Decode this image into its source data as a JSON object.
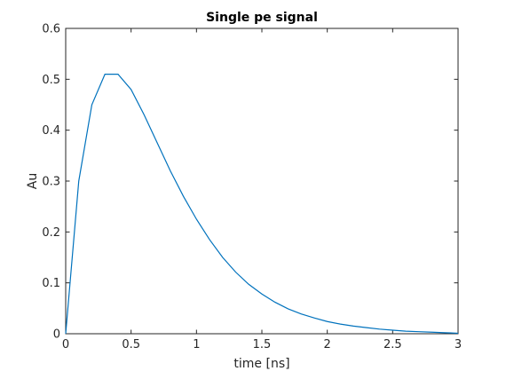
{
  "chart_data": {
    "type": "line",
    "title": "Single pe signal",
    "xlabel": "time [ns]",
    "ylabel": "Au",
    "xlim": [
      0,
      3
    ],
    "ylim": [
      0,
      0.6
    ],
    "xticks": [
      "0",
      "0.5",
      "1",
      "1.5",
      "2",
      "2.5",
      "3"
    ],
    "yticks": [
      "0",
      "0.1",
      "0.2",
      "0.3",
      "0.4",
      "0.5",
      "0.6"
    ],
    "grid": false,
    "line_color": "#0072BD",
    "x": [
      0,
      0.1,
      0.2,
      0.3,
      0.4,
      0.5,
      0.6,
      0.7,
      0.8,
      0.9,
      1.0,
      1.1,
      1.2,
      1.3,
      1.4,
      1.5,
      1.6,
      1.7,
      1.8,
      1.9,
      2.0,
      2.1,
      2.2,
      2.3,
      2.4,
      2.5,
      2.6,
      2.7,
      2.8,
      2.9,
      3.0
    ],
    "y": [
      0,
      0.3,
      0.45,
      0.51,
      0.51,
      0.48,
      0.43,
      0.375,
      0.32,
      0.27,
      0.225,
      0.185,
      0.15,
      0.121,
      0.097,
      0.078,
      0.062,
      0.049,
      0.039,
      0.031,
      0.024,
      0.019,
      0.015,
      0.012,
      0.009,
      0.007,
      0.005,
      0.004,
      0.003,
      0.002,
      0.001
    ]
  }
}
